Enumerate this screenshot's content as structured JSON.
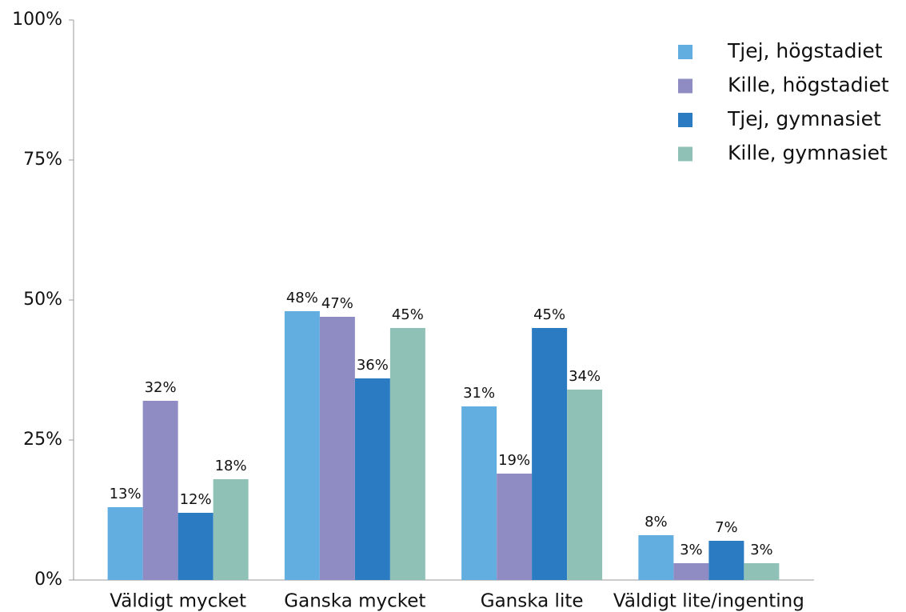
{
  "chart_data": {
    "type": "bar",
    "categories": [
      "Väldigt mycket",
      "Ganska mycket",
      "Ganska lite",
      "Väldigt lite/ingenting"
    ],
    "series": [
      {
        "name": "Tjej, högstadiet",
        "color": "#62aee0",
        "values": [
          13,
          48,
          31,
          8
        ],
        "value_labels": [
          "13%",
          "48%",
          "31%",
          "8%"
        ]
      },
      {
        "name": "Kille, högstadiet",
        "color": "#8f8cc4",
        "values": [
          32,
          47,
          19,
          3
        ],
        "value_labels": [
          "32%",
          "47%",
          "19%",
          "3%"
        ]
      },
      {
        "name": "Tjej, gymnasiet",
        "color": "#2a7bc1",
        "values": [
          12,
          36,
          45,
          7
        ],
        "value_labels": [
          "12%",
          "36%",
          "45%",
          "7%"
        ]
      },
      {
        "name": "Kille, gymnasiet",
        "color": "#8fc1b6",
        "values": [
          18,
          45,
          34,
          3
        ],
        "value_labels": [
          "18%",
          "45%",
          "34%",
          "3%"
        ]
      }
    ],
    "ylim": [
      0,
      100
    ],
    "yticks": [
      {
        "value": 0,
        "label": "0%"
      },
      {
        "value": 25,
        "label": "25%"
      },
      {
        "value": 50,
        "label": "50%"
      },
      {
        "value": 75,
        "label": "75%"
      },
      {
        "value": 100,
        "label": "100%"
      }
    ],
    "legend": "top-right"
  }
}
